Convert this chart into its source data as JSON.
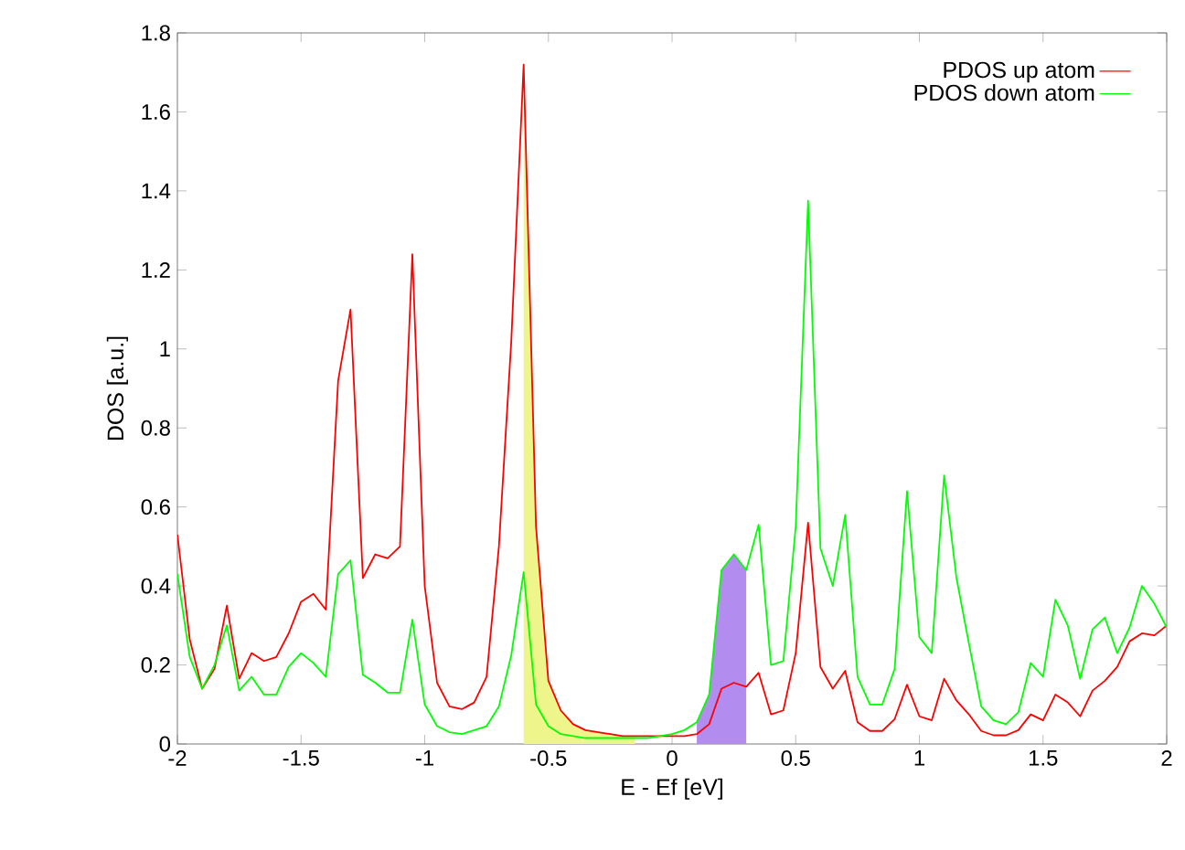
{
  "chart_data": {
    "type": "line",
    "xlabel": "E - Ef [eV]",
    "ylabel": "DOS [a.u.]",
    "x": [
      -2,
      -1.95,
      -1.9,
      -1.85,
      -1.8,
      -1.75,
      -1.7,
      -1.65,
      -1.6,
      -1.55,
      -1.5,
      -1.45,
      -1.4,
      -1.35,
      -1.3,
      -1.25,
      -1.2,
      -1.15,
      -1.1,
      -1.05,
      -1,
      -0.95,
      -0.9,
      -0.85,
      -0.8,
      -0.75,
      -0.7,
      -0.65,
      -0.6,
      -0.55,
      -0.5,
      -0.45,
      -0.4,
      -0.35,
      -0.3,
      -0.25,
      -0.2,
      -0.15,
      -0.1,
      -0.05,
      0,
      0.05,
      0.1,
      0.15,
      0.2,
      0.25,
      0.3,
      0.35,
      0.4,
      0.45,
      0.5,
      0.55,
      0.6,
      0.65,
      0.7,
      0.75,
      0.8,
      0.85,
      0.9,
      0.95,
      1,
      1.05,
      1.1,
      1.15,
      1.2,
      1.25,
      1.3,
      1.35,
      1.4,
      1.45,
      1.5,
      1.55,
      1.6,
      1.65,
      1.7,
      1.75,
      1.8,
      1.85,
      1.9,
      1.95,
      2
    ],
    "series": [
      {
        "name": "PDOS up atom",
        "color": "#ff0000",
        "values": [
          0.53,
          0.265,
          0.14,
          0.19,
          0.35,
          0.165,
          0.23,
          0.21,
          0.22,
          0.28,
          0.36,
          0.38,
          0.34,
          0.92,
          1.1,
          0.42,
          0.48,
          0.47,
          0.5,
          1.24,
          0.4,
          0.155,
          0.095,
          0.088,
          0.105,
          0.17,
          0.5,
          1.02,
          1.72,
          0.55,
          0.16,
          0.085,
          0.05,
          0.035,
          0.03,
          0.025,
          0.02,
          0.02,
          0.02,
          0.02,
          0.02,
          0.02,
          0.025,
          0.05,
          0.14,
          0.155,
          0.145,
          0.18,
          0.075,
          0.085,
          0.23,
          0.56,
          0.195,
          0.14,
          0.185,
          0.055,
          0.033,
          0.033,
          0.063,
          0.15,
          0.07,
          0.06,
          0.165,
          0.11,
          0.075,
          0.033,
          0.022,
          0.022,
          0.035,
          0.075,
          0.06,
          0.125,
          0.105,
          0.07,
          0.135,
          0.16,
          0.195,
          0.26,
          0.28,
          0.275,
          0.3
        ]
      },
      {
        "name": "PDOS down atom",
        "color": "#00ff00",
        "values": [
          0.43,
          0.22,
          0.14,
          0.2,
          0.3,
          0.135,
          0.17,
          0.125,
          0.125,
          0.195,
          0.23,
          0.205,
          0.17,
          0.43,
          0.465,
          0.175,
          0.155,
          0.13,
          0.13,
          0.315,
          0.1,
          0.045,
          0.03,
          0.025,
          0.035,
          0.045,
          0.095,
          0.225,
          0.435,
          0.1,
          0.045,
          0.025,
          0.02,
          0.015,
          0.015,
          0.015,
          0.015,
          0.015,
          0.015,
          0.02,
          0.025,
          0.035,
          0.055,
          0.125,
          0.44,
          0.48,
          0.44,
          0.555,
          0.2,
          0.21,
          0.55,
          1.375,
          0.495,
          0.4,
          0.58,
          0.17,
          0.1,
          0.1,
          0.19,
          0.64,
          0.27,
          0.23,
          0.68,
          0.42,
          0.255,
          0.095,
          0.06,
          0.05,
          0.08,
          0.205,
          0.17,
          0.365,
          0.3,
          0.165,
          0.29,
          0.32,
          0.23,
          0.295,
          0.4,
          0.355,
          0.295
        ]
      },
      {
        "type": "area",
        "color": "#eef58a",
        "x": [
          -0.6,
          -0.55,
          -0.5,
          -0.45,
          -0.4,
          -0.35,
          -0.3,
          -0.25,
          -0.2,
          -0.15
        ],
        "values": [
          1.72,
          0.55,
          0.16,
          0.085,
          0.05,
          0.035,
          0.03,
          0.025,
          0.02,
          0.02
        ]
      },
      {
        "type": "area",
        "color": "#b38cf0",
        "x": [
          0.1,
          0.15,
          0.2,
          0.25,
          0.3
        ],
        "values": [
          0.055,
          0.125,
          0.44,
          0.48,
          0.44
        ]
      }
    ],
    "xlim": [
      -2,
      2
    ],
    "ylim": [
      0,
      1.8
    ],
    "xticks": [
      -2,
      -1.5,
      -1,
      -0.5,
      0,
      0.5,
      1,
      1.5,
      2
    ],
    "yticks": [
      0,
      0.2,
      0.4,
      0.6,
      0.8,
      1,
      1.2,
      1.4,
      1.6,
      1.8
    ],
    "legend": "top right"
  }
}
